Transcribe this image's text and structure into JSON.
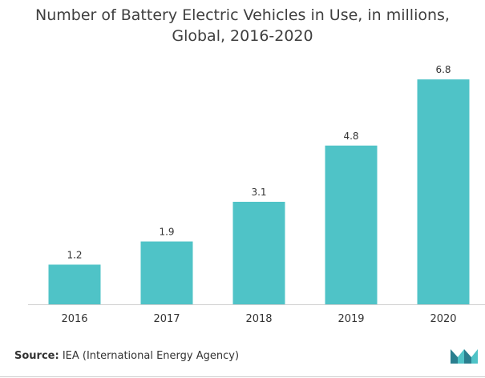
{
  "chart_data": {
    "type": "bar",
    "title_lines": [
      "Number of Battery Electric Vehicles in Use, in millions,",
      "Global, 2016-2020"
    ],
    "categories": [
      "2016",
      "2017",
      "2018",
      "2019",
      "2020"
    ],
    "values": [
      1.2,
      1.9,
      3.1,
      4.8,
      6.8
    ],
    "value_labels": [
      "1.2",
      "1.9",
      "3.1",
      "4.8",
      "6.8"
    ],
    "xlabel": "",
    "ylabel": "",
    "ylim": [
      0,
      7
    ],
    "grid": false,
    "bar_color": "#4fc3c7"
  },
  "footer": {
    "source_label": "Source:",
    "source_text": "IEA (International Energy Agency)"
  },
  "logo": {
    "icon": "mordor-intelligence-logo-icon",
    "colors": [
      "#2a7f8f",
      "#4fc3c7"
    ]
  }
}
